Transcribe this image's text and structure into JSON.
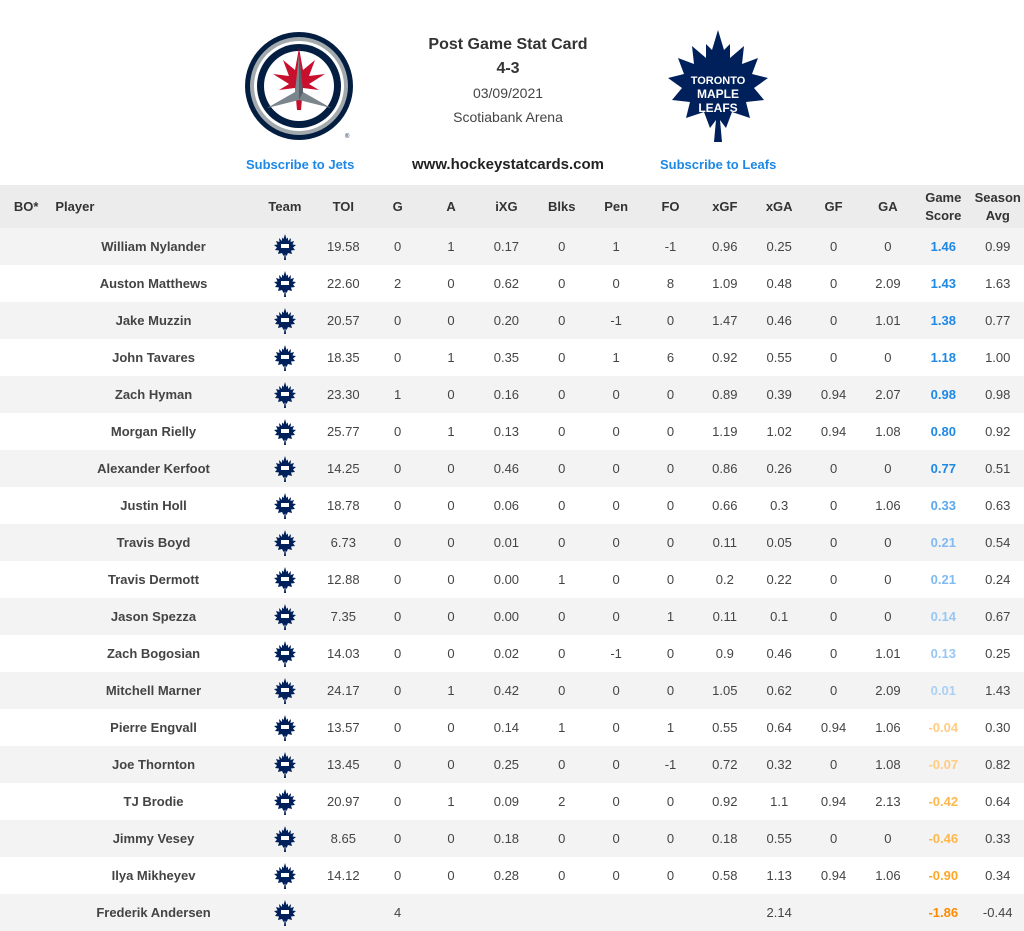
{
  "header": {
    "title": "Post Game Stat Card",
    "score": "4-3",
    "date": "03/09/2021",
    "arena": "Scotiabank Arena",
    "site": "www.hockeystatcards.com",
    "subscribe_home": "Subscribe to Jets",
    "subscribe_away": "Subscribe to Leafs",
    "leafs_logo_text": [
      "TORONTO",
      "MAPLE",
      "LEAFS"
    ]
  },
  "colors": {
    "link": "#1e88e5",
    "leafs_blue": "#00205b",
    "jets_navy": "#041e42",
    "jets_red": "#c8102e",
    "score_strong": "#1e88e5",
    "score_mid": "#5aa8ef",
    "score_weak": "#a9d0f5",
    "score_neg_light": "#ffcc80",
    "score_neg_mid": "#ffb74d",
    "score_neg_strong": "#fb8c00"
  },
  "columns": [
    "BO*",
    "Player",
    "Team",
    "TOI",
    "G",
    "A",
    "iXG",
    "Blks",
    "Pen",
    "FO",
    "xGF",
    "xGA",
    "GF",
    "GA",
    "Game Score",
    "Season Avg"
  ],
  "team_icon": "maple-leaf-icon",
  "rows": [
    {
      "bo": "",
      "player": "William Nylander",
      "toi": "19.58",
      "g": "0",
      "a": "1",
      "ixg": "0.17",
      "blk": "0",
      "pen": "1",
      "fo": "-1",
      "xgf": "0.96",
      "xga": "0.25",
      "gf": "0",
      "ga": "0",
      "gs": "1.46",
      "sa": "0.99",
      "gs_color": "#1e88e5"
    },
    {
      "bo": "",
      "player": "Auston Matthews",
      "toi": "22.60",
      "g": "2",
      "a": "0",
      "ixg": "0.62",
      "blk": "0",
      "pen": "0",
      "fo": "8",
      "xgf": "1.09",
      "xga": "0.48",
      "gf": "0",
      "ga": "2.09",
      "gs": "1.43",
      "sa": "1.63",
      "gs_color": "#1e88e5"
    },
    {
      "bo": "",
      "player": "Jake Muzzin",
      "toi": "20.57",
      "g": "0",
      "a": "0",
      "ixg": "0.20",
      "blk": "0",
      "pen": "-1",
      "fo": "0",
      "xgf": "1.47",
      "xga": "0.46",
      "gf": "0",
      "ga": "1.01",
      "gs": "1.38",
      "sa": "0.77",
      "gs_color": "#1e88e5"
    },
    {
      "bo": "",
      "player": "John Tavares",
      "toi": "18.35",
      "g": "0",
      "a": "1",
      "ixg": "0.35",
      "blk": "0",
      "pen": "1",
      "fo": "6",
      "xgf": "0.92",
      "xga": "0.55",
      "gf": "0",
      "ga": "0",
      "gs": "1.18",
      "sa": "1.00",
      "gs_color": "#1e88e5"
    },
    {
      "bo": "",
      "player": "Zach Hyman",
      "toi": "23.30",
      "g": "1",
      "a": "0",
      "ixg": "0.16",
      "blk": "0",
      "pen": "0",
      "fo": "0",
      "xgf": "0.89",
      "xga": "0.39",
      "gf": "0.94",
      "ga": "2.07",
      "gs": "0.98",
      "sa": "0.98",
      "gs_color": "#1e88e5"
    },
    {
      "bo": "",
      "player": "Morgan Rielly",
      "toi": "25.77",
      "g": "0",
      "a": "1",
      "ixg": "0.13",
      "blk": "0",
      "pen": "0",
      "fo": "0",
      "xgf": "1.19",
      "xga": "1.02",
      "gf": "0.94",
      "ga": "1.08",
      "gs": "0.80",
      "sa": "0.92",
      "gs_color": "#1e88e5"
    },
    {
      "bo": "",
      "player": "Alexander Kerfoot",
      "toi": "14.25",
      "g": "0",
      "a": "0",
      "ixg": "0.46",
      "blk": "0",
      "pen": "0",
      "fo": "0",
      "xgf": "0.86",
      "xga": "0.26",
      "gf": "0",
      "ga": "0",
      "gs": "0.77",
      "sa": "0.51",
      "gs_color": "#1e88e5"
    },
    {
      "bo": "",
      "player": "Justin Holl",
      "toi": "18.78",
      "g": "0",
      "a": "0",
      "ixg": "0.06",
      "blk": "0",
      "pen": "0",
      "fo": "0",
      "xgf": "0.66",
      "xga": "0.3",
      "gf": "0",
      "ga": "1.06",
      "gs": "0.33",
      "sa": "0.63",
      "gs_color": "#5aa8ef"
    },
    {
      "bo": "",
      "player": "Travis Boyd",
      "toi": "6.73",
      "g": "0",
      "a": "0",
      "ixg": "0.01",
      "blk": "0",
      "pen": "0",
      "fo": "0",
      "xgf": "0.11",
      "xga": "0.05",
      "gf": "0",
      "ga": "0",
      "gs": "0.21",
      "sa": "0.54",
      "gs_color": "#7fbaf2"
    },
    {
      "bo": "",
      "player": "Travis Dermott",
      "toi": "12.88",
      "g": "0",
      "a": "0",
      "ixg": "0.00",
      "blk": "1",
      "pen": "0",
      "fo": "0",
      "xgf": "0.2",
      "xga": "0.22",
      "gf": "0",
      "ga": "0",
      "gs": "0.21",
      "sa": "0.24",
      "gs_color": "#7fbaf2"
    },
    {
      "bo": "",
      "player": "Jason Spezza",
      "toi": "7.35",
      "g": "0",
      "a": "0",
      "ixg": "0.00",
      "blk": "0",
      "pen": "0",
      "fo": "1",
      "xgf": "0.11",
      "xga": "0.1",
      "gf": "0",
      "ga": "0",
      "gs": "0.14",
      "sa": "0.67",
      "gs_color": "#97c7f4"
    },
    {
      "bo": "",
      "player": "Zach Bogosian",
      "toi": "14.03",
      "g": "0",
      "a": "0",
      "ixg": "0.02",
      "blk": "0",
      "pen": "-1",
      "fo": "0",
      "xgf": "0.9",
      "xga": "0.46",
      "gf": "0",
      "ga": "1.01",
      "gs": "0.13",
      "sa": "0.25",
      "gs_color": "#97c7f4"
    },
    {
      "bo": "",
      "player": "Mitchell Marner",
      "toi": "24.17",
      "g": "0",
      "a": "1",
      "ixg": "0.42",
      "blk": "0",
      "pen": "0",
      "fo": "0",
      "xgf": "1.05",
      "xga": "0.62",
      "gf": "0",
      "ga": "2.09",
      "gs": "0.01",
      "sa": "1.43",
      "gs_color": "#a9d0f5"
    },
    {
      "bo": "",
      "player": "Pierre Engvall",
      "toi": "13.57",
      "g": "0",
      "a": "0",
      "ixg": "0.14",
      "blk": "1",
      "pen": "0",
      "fo": "1",
      "xgf": "0.55",
      "xga": "0.64",
      "gf": "0.94",
      "ga": "1.06",
      "gs": "-0.04",
      "sa": "0.30",
      "gs_color": "#ffcc80"
    },
    {
      "bo": "",
      "player": "Joe Thornton",
      "toi": "13.45",
      "g": "0",
      "a": "0",
      "ixg": "0.25",
      "blk": "0",
      "pen": "0",
      "fo": "-1",
      "xgf": "0.72",
      "xga": "0.32",
      "gf": "0",
      "ga": "1.08",
      "gs": "-0.07",
      "sa": "0.82",
      "gs_color": "#ffcc80"
    },
    {
      "bo": "",
      "player": "TJ Brodie",
      "toi": "20.97",
      "g": "0",
      "a": "1",
      "ixg": "0.09",
      "blk": "2",
      "pen": "0",
      "fo": "0",
      "xgf": "0.92",
      "xga": "1.1",
      "gf": "0.94",
      "ga": "2.13",
      "gs": "-0.42",
      "sa": "0.64",
      "gs_color": "#ffb74d"
    },
    {
      "bo": "",
      "player": "Jimmy Vesey",
      "toi": "8.65",
      "g": "0",
      "a": "0",
      "ixg": "0.18",
      "blk": "0",
      "pen": "0",
      "fo": "0",
      "xgf": "0.18",
      "xga": "0.55",
      "gf": "0",
      "ga": "0",
      "gs": "-0.46",
      "sa": "0.33",
      "gs_color": "#ffb74d"
    },
    {
      "bo": "",
      "player": "Ilya Mikheyev",
      "toi": "14.12",
      "g": "0",
      "a": "0",
      "ixg": "0.28",
      "blk": "0",
      "pen": "0",
      "fo": "0",
      "xgf": "0.58",
      "xga": "1.13",
      "gf": "0.94",
      "ga": "1.06",
      "gs": "-0.90",
      "sa": "0.34",
      "gs_color": "#ffa726"
    },
    {
      "bo": "",
      "player": "Frederik Andersen",
      "toi": "",
      "g": "4",
      "a": "",
      "ixg": "",
      "blk": "",
      "pen": "",
      "fo": "",
      "xgf": "",
      "xga": "2.14",
      "gf": "",
      "ga": "",
      "gs": "-1.86",
      "sa": "-0.44",
      "gs_color": "#fb8c00"
    }
  ]
}
